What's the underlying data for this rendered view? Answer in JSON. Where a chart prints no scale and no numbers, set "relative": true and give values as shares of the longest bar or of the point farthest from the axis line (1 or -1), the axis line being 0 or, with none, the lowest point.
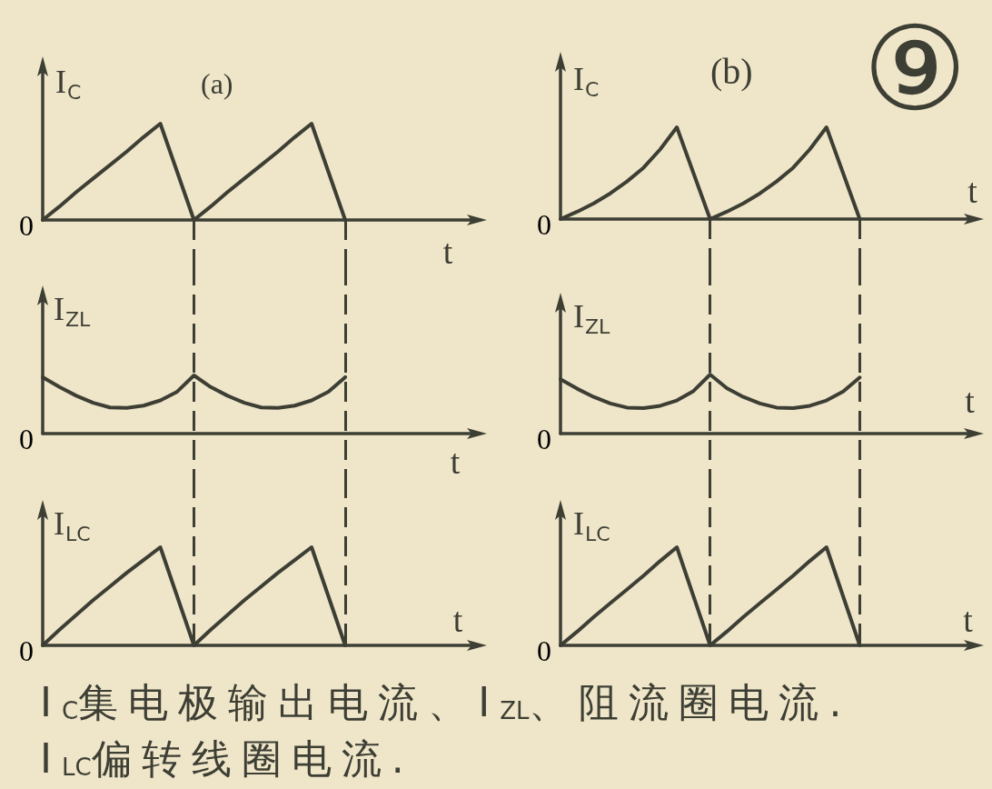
{
  "chart_data": [
    {
      "type": "line",
      "title": "(a)",
      "xlabel": "t",
      "ylabel": "I$_{C}$",
      "annotations": [
        "0"
      ],
      "relative": true,
      "color": "#3d3e34",
      "categories": [
        null,
        null,
        null,
        null,
        null,
        null,
        null,
        null,
        null,
        null,
        null,
        null,
        null,
        null,
        null,
        null,
        null,
        null,
        null,
        null,
        null,
        null,
        null,
        null,
        null,
        null,
        null
      ],
      "values": [
        0,
        0.14,
        0.29,
        0.43,
        0.57,
        0.71,
        0.86,
        1,
        0.5,
        0,
        0.14,
        0.29,
        0.43,
        0.57,
        0.71,
        0.86,
        1,
        0.5,
        0,
        null,
        null,
        null,
        null,
        null,
        null,
        null,
        null
      ]
    },
    {
      "type": "line",
      "title": "(b)",
      "xlabel": "t",
      "ylabel": "I$_{C}$",
      "annotations": [
        "0",
        "⑨"
      ],
      "relative": true,
      "color": "#3d3e34",
      "categories": [
        null,
        null,
        null,
        null,
        null,
        null,
        null,
        null,
        null,
        null,
        null,
        null,
        null,
        null,
        null,
        null,
        null,
        null,
        null,
        null,
        null,
        null,
        null,
        null,
        null,
        null
      ],
      "values": [
        0,
        0.08,
        0.17,
        0.28,
        0.41,
        0.56,
        0.76,
        1,
        0.5,
        0,
        0.08,
        0.17,
        0.28,
        0.41,
        0.56,
        0.76,
        1,
        0.5,
        0,
        null,
        null,
        null,
        null,
        null,
        null,
        null
      ]
    },
    {
      "type": "line",
      "xlabel": "t",
      "ylabel": "I$_{ZL}$",
      "annotations": [
        "0"
      ],
      "relative": true,
      "color": "#3d3e34",
      "categories": [
        null,
        null,
        null,
        null,
        null,
        null,
        null,
        null,
        null,
        null,
        null,
        null,
        null,
        null,
        null,
        null,
        null,
        null,
        null,
        null,
        null,
        null,
        null,
        null,
        null,
        null,
        null
      ],
      "values": [
        0.97,
        0.8,
        0.65,
        0.53,
        0.45,
        0.44,
        0.48,
        0.57,
        0.72,
        1,
        0.8,
        0.65,
        0.53,
        0.45,
        0.44,
        0.48,
        0.57,
        0.72,
        0.97,
        null,
        null,
        null,
        null,
        null,
        null,
        null,
        null
      ]
    },
    {
      "type": "line",
      "xlabel": "t",
      "ylabel": "I$_{ZL}$",
      "annotations": [
        "0"
      ],
      "relative": true,
      "color": "#3d3e34",
      "categories": [
        null,
        null,
        null,
        null,
        null,
        null,
        null,
        null,
        null,
        null,
        null,
        null,
        null,
        null,
        null,
        null,
        null,
        null,
        null,
        null,
        null,
        null,
        null,
        null,
        null,
        null
      ],
      "values": [
        0.92,
        0.76,
        0.62,
        0.51,
        0.44,
        0.43,
        0.47,
        0.56,
        0.72,
        1,
        0.77,
        0.62,
        0.51,
        0.44,
        0.43,
        0.47,
        0.56,
        0.71,
        0.95,
        null,
        null,
        null,
        null,
        null,
        null,
        null
      ]
    },
    {
      "type": "line",
      "xlabel": "t",
      "ylabel": "I$_{LC}$",
      "annotations": [
        "0",
        "I$_{C}$集电极输出电流、I$_{ZL}$、阻流圈电流.",
        "I$_{LC}$偏转线圈电流."
      ],
      "relative": true,
      "color": "#3d3e34",
      "categories": [
        null,
        null,
        null,
        null,
        null,
        null,
        null,
        null,
        null,
        null,
        null,
        null,
        null,
        null,
        null,
        null,
        null,
        null,
        null,
        null,
        null,
        null,
        null,
        null,
        null,
        null,
        null
      ],
      "values": [
        0,
        0.16,
        0.31,
        0.46,
        0.6,
        0.74,
        0.87,
        1,
        0.5,
        0,
        0.16,
        0.31,
        0.46,
        0.6,
        0.74,
        0.87,
        1,
        0.5,
        0,
        null,
        null,
        null,
        null,
        null,
        null,
        null,
        null
      ]
    },
    {
      "type": "line",
      "xlabel": "t",
      "ylabel": "I$_{LC}$",
      "annotations": [
        "0"
      ],
      "relative": true,
      "color": "#3d3e34",
      "categories": [
        null,
        null,
        null,
        null,
        null,
        null,
        null,
        null,
        null,
        null,
        null,
        null,
        null,
        null,
        null,
        null,
        null,
        null,
        null,
        null,
        null,
        null,
        null,
        null,
        null,
        null
      ],
      "values": [
        0,
        0.14,
        0.29,
        0.43,
        0.57,
        0.71,
        0.86,
        1,
        0.5,
        0,
        0.14,
        0.29,
        0.43,
        0.57,
        0.71,
        0.86,
        1,
        0.5,
        0,
        null,
        null,
        null,
        null,
        null,
        null,
        null
      ]
    }
  ]
}
